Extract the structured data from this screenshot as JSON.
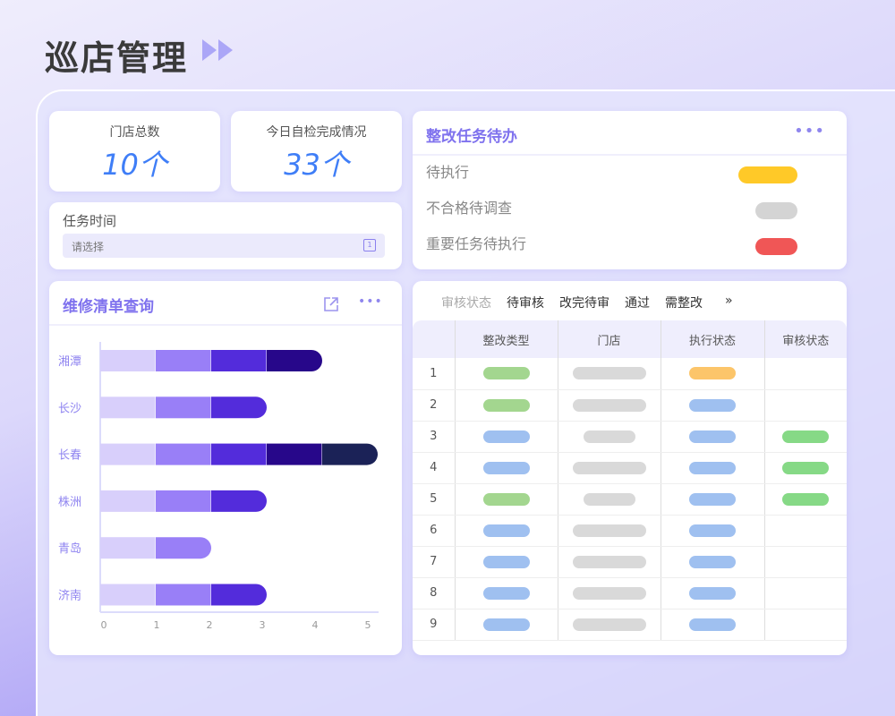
{
  "page": {
    "title": "巡店管理"
  },
  "stats": [
    {
      "label": "门店总数",
      "value": "10个"
    },
    {
      "label": "今日自检完成情况",
      "value": "33个"
    }
  ],
  "task_time": {
    "label": "任务时间",
    "placeholder": "请选择",
    "icon": "calendar-icon"
  },
  "repair": {
    "title": "维修清单查询",
    "icons": [
      "share-icon",
      "more-icon"
    ]
  },
  "pending": {
    "title": "整改任务待办",
    "items": [
      {
        "label": "待执行",
        "color": "#ffc928"
      },
      {
        "label": "不合格待调查",
        "color": "#d4d4d4"
      },
      {
        "label": "重要任务待执行",
        "color": "#f05656"
      }
    ]
  },
  "audit": {
    "filter_label": "审核状态",
    "tabs": [
      "待审核",
      "改完待审",
      "通过",
      "需整改"
    ],
    "more": "»",
    "columns": [
      "",
      "整改类型",
      "门店",
      "执行状态",
      "审核状态"
    ],
    "rows": [
      {
        "n": "1",
        "type": "green",
        "store": "long",
        "exec": "orange",
        "audit": ""
      },
      {
        "n": "2",
        "type": "green",
        "store": "long",
        "exec": "blue",
        "audit": ""
      },
      {
        "n": "3",
        "type": "blue",
        "store": "short",
        "exec": "blue",
        "audit": "green"
      },
      {
        "n": "4",
        "type": "blue",
        "store": "long",
        "exec": "blue",
        "audit": "green"
      },
      {
        "n": "5",
        "type": "green",
        "store": "short",
        "exec": "blue",
        "audit": "green"
      },
      {
        "n": "6",
        "type": "blue",
        "store": "long",
        "exec": "blue",
        "audit": ""
      },
      {
        "n": "7",
        "type": "blue",
        "store": "long",
        "exec": "blue",
        "audit": ""
      },
      {
        "n": "8",
        "type": "blue",
        "store": "long",
        "exec": "blue",
        "audit": ""
      },
      {
        "n": "9",
        "type": "blue",
        "store": "long",
        "exec": "blue",
        "audit": ""
      }
    ],
    "colors": {
      "green": "#a3d68f",
      "blue": "#9fc0f0",
      "orange": "#fcc56a",
      "gray": "#d9d9d9",
      "audit_green": "#86d986"
    }
  },
  "chart_data": {
    "type": "bar",
    "orientation": "horizontal",
    "stacked": true,
    "categories": [
      "湘潭",
      "长沙",
      "长春",
      "株洲",
      "青岛",
      "济南"
    ],
    "segments": [
      [
        1,
        1,
        1,
        1
      ],
      [
        1,
        1,
        1
      ],
      [
        1,
        1,
        1,
        1,
        1
      ],
      [
        1,
        1,
        1
      ],
      [
        1,
        1
      ],
      [
        1,
        1,
        1
      ]
    ],
    "segment_colors": [
      "#d8cffb",
      "#997ff7",
      "#532cdb",
      "#27078a",
      "#1b2257"
    ],
    "xticks": [
      "0",
      "1",
      "2",
      "3",
      "4",
      "5"
    ],
    "xlim": [
      0,
      5
    ],
    "grid": false
  }
}
